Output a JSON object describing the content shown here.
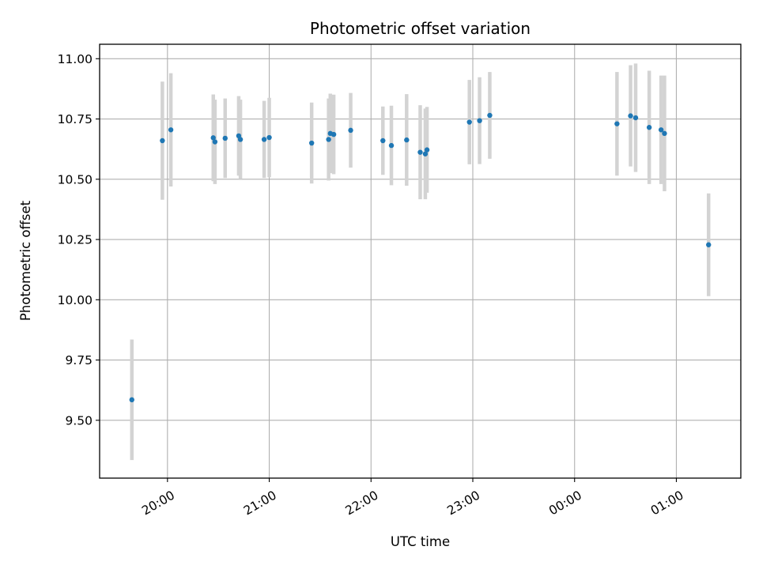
{
  "chart_data": {
    "type": "scatter",
    "title": "Photometric offset variation",
    "xlabel": "UTC time",
    "ylabel": "Photometric offset",
    "x_ticks": [
      "20:00",
      "21:00",
      "22:00",
      "23:00",
      "00:00",
      "01:00"
    ],
    "x_tick_dates": [
      "2000-01-01T20:00",
      "2000-01-01T21:00",
      "2000-01-01T22:00",
      "2000-01-01T23:00",
      "2000-01-02T00:00",
      "2000-01-02T01:00"
    ],
    "xlim": [
      "2000-01-01T19:20",
      "2000-01-02T01:38"
    ],
    "y_ticks": [
      "9.50",
      "9.75",
      "10.00",
      "10.25",
      "10.50",
      "10.75",
      "11.00"
    ],
    "ylim": [
      9.26,
      11.06
    ],
    "grid": true,
    "point_color": "#1f77b4",
    "errorbar_color": "#d3d3d3",
    "series": [
      {
        "points": [
          {
            "x": "19:39",
            "y": 9.585,
            "yerr": 0.25
          },
          {
            "x": "19:57",
            "y": 10.66,
            "yerr": 0.245
          },
          {
            "x": "20:02",
            "y": 10.705,
            "yerr": 0.235
          },
          {
            "x": "20:27",
            "y": 10.672,
            "yerr": 0.18
          },
          {
            "x": "20:28",
            "y": 10.655,
            "yerr": 0.175
          },
          {
            "x": "20:34",
            "y": 10.67,
            "yerr": 0.165
          },
          {
            "x": "20:42",
            "y": 10.68,
            "yerr": 0.165
          },
          {
            "x": "20:43",
            "y": 10.665,
            "yerr": 0.165
          },
          {
            "x": "20:57",
            "y": 10.665,
            "yerr": 0.16
          },
          {
            "x": "21:00",
            "y": 10.673,
            "yerr": 0.165
          },
          {
            "x": "21:25",
            "y": 10.65,
            "yerr": 0.168
          },
          {
            "x": "21:35",
            "y": 10.665,
            "yerr": 0.17
          },
          {
            "x": "21:36",
            "y": 10.69,
            "yerr": 0.165
          },
          {
            "x": "21:38",
            "y": 10.686,
            "yerr": 0.165
          },
          {
            "x": "21:48",
            "y": 10.703,
            "yerr": 0.155
          },
          {
            "x": "22:07",
            "y": 10.66,
            "yerr": 0.142
          },
          {
            "x": "22:12",
            "y": 10.64,
            "yerr": 0.165
          },
          {
            "x": "22:21",
            "y": 10.663,
            "yerr": 0.19
          },
          {
            "x": "22:29",
            "y": 10.612,
            "yerr": 0.195
          },
          {
            "x": "22:32",
            "y": 10.605,
            "yerr": 0.188
          },
          {
            "x": "22:33",
            "y": 10.622,
            "yerr": 0.178
          },
          {
            "x": "22:58",
            "y": 10.737,
            "yerr": 0.175
          },
          {
            "x": "23:04",
            "y": 10.743,
            "yerr": 0.18
          },
          {
            "x": "23:10",
            "y": 10.765,
            "yerr": 0.18
          },
          {
            "x": "00:25",
            "y": 10.73,
            "yerr": 0.215
          },
          {
            "x": "00:33",
            "y": 10.763,
            "yerr": 0.21
          },
          {
            "x": "00:36",
            "y": 10.755,
            "yerr": 0.225
          },
          {
            "x": "00:44",
            "y": 10.715,
            "yerr": 0.235
          },
          {
            "x": "00:51",
            "y": 10.705,
            "yerr": 0.225
          },
          {
            "x": "00:53",
            "y": 10.69,
            "yerr": 0.24
          },
          {
            "x": "01:19",
            "y": 10.228,
            "yerr": 0.213
          }
        ]
      }
    ]
  }
}
